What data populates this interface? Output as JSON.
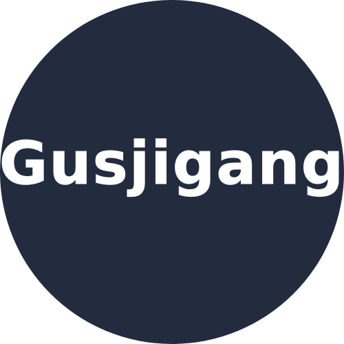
{
  "logo": {
    "text": "Gusjigang",
    "background_color": "#232c3e",
    "text_color": "#ffffff",
    "page_background": "#ffffff"
  }
}
